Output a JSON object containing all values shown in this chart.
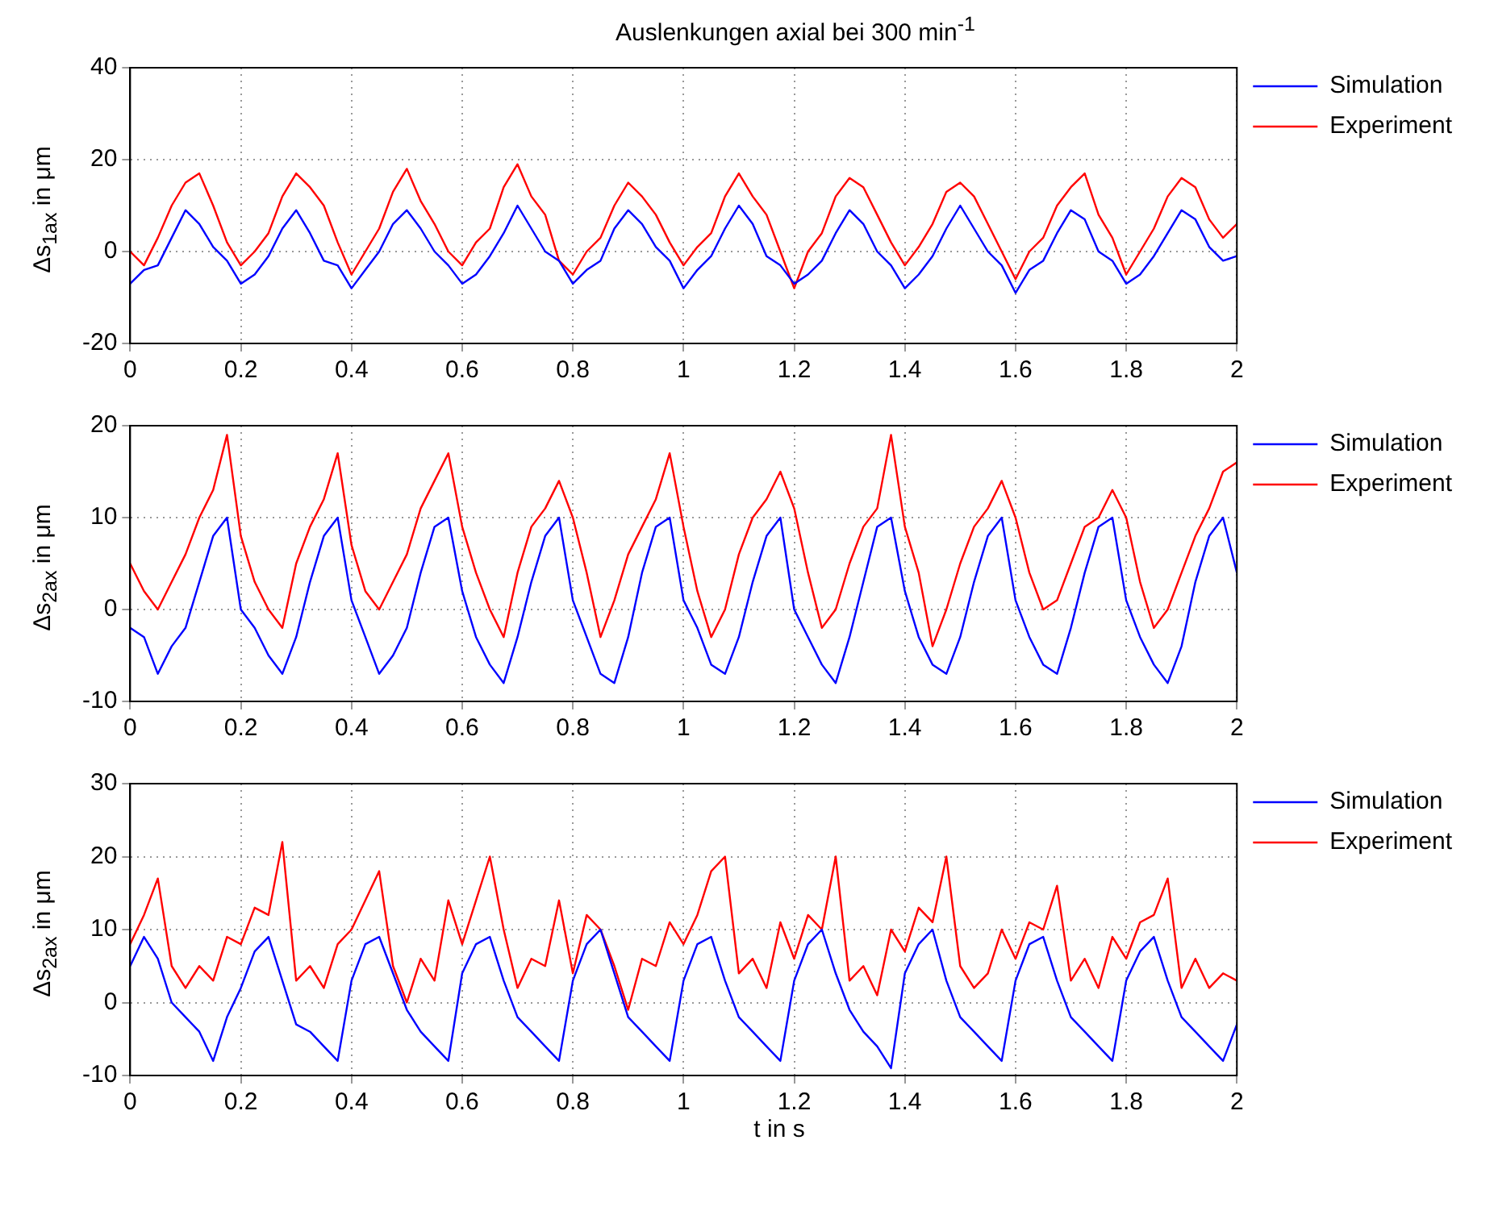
{
  "chart_data": [
    {
      "type": "line",
      "title": "Auslenkungen axial bei 300 min$^{-1}$",
      "ylabel": "Δs$_{1ax}$ in μm",
      "xlim": [
        0,
        2
      ],
      "ylim": [
        -20,
        40
      ],
      "xticks": [
        0,
        0.2,
        0.4,
        0.6,
        0.8,
        1,
        1.2,
        1.4,
        1.6,
        1.8,
        2
      ],
      "yticks": [
        -20,
        0,
        20,
        40
      ],
      "grid": true,
      "legend": "top right",
      "x": [
        0,
        0.025,
        0.05,
        0.075,
        0.1,
        0.125,
        0.15,
        0.175,
        0.2,
        0.225,
        0.25,
        0.275,
        0.3,
        0.325,
        0.35,
        0.375,
        0.4,
        0.425,
        0.45,
        0.475,
        0.5,
        0.525,
        0.55,
        0.575,
        0.6,
        0.625,
        0.65,
        0.675,
        0.7,
        0.725,
        0.75,
        0.775,
        0.8,
        0.825,
        0.85,
        0.875,
        0.9,
        0.925,
        0.95,
        0.975,
        1,
        1.025,
        1.05,
        1.075,
        1.1,
        1.125,
        1.15,
        1.175,
        1.2,
        1.225,
        1.25,
        1.275,
        1.3,
        1.325,
        1.35,
        1.375,
        1.4,
        1.425,
        1.45,
        1.475,
        1.5,
        1.525,
        1.55,
        1.575,
        1.6,
        1.625,
        1.65,
        1.675,
        1.7,
        1.725,
        1.75,
        1.775,
        1.8,
        1.825,
        1.85,
        1.875,
        1.9,
        1.925,
        1.95,
        1.975,
        2
      ],
      "series": [
        {
          "name": "Simulation",
          "color": "#0000ff",
          "values": [
            -7,
            -4,
            -3,
            3,
            9,
            6,
            1,
            -2,
            -7,
            -5,
            -1,
            5,
            9,
            4,
            -2,
            -3,
            -8,
            -4,
            0,
            6,
            9,
            5,
            0,
            -3,
            -7,
            -5,
            -1,
            4,
            10,
            5,
            0,
            -2,
            -7,
            -4,
            -2,
            5,
            9,
            6,
            1,
            -2,
            -8,
            -4,
            -1,
            5,
            10,
            6,
            -1,
            -3,
            -7,
            -5,
            -2,
            4,
            9,
            6,
            0,
            -3,
            -8,
            -5,
            -1,
            5,
            10,
            5,
            0,
            -3,
            -9,
            -4,
            -2,
            4,
            9,
            7,
            0,
            -2,
            -7,
            -5,
            -1,
            4,
            9,
            7,
            1,
            -2,
            -1
          ]
        },
        {
          "name": "Experiment",
          "color": "#ff0000",
          "values": [
            0,
            -3,
            3,
            10,
            15,
            17,
            10,
            2,
            -3,
            0,
            4,
            12,
            17,
            14,
            10,
            2,
            -5,
            0,
            5,
            13,
            18,
            11,
            6,
            0,
            -3,
            2,
            5,
            14,
            19,
            12,
            8,
            -2,
            -5,
            0,
            3,
            10,
            15,
            12,
            8,
            2,
            -3,
            1,
            4,
            12,
            17,
            12,
            8,
            0,
            -8,
            0,
            4,
            12,
            16,
            14,
            8,
            2,
            -3,
            1,
            6,
            13,
            15,
            12,
            6,
            0,
            -6,
            0,
            3,
            10,
            14,
            17,
            8,
            3,
            -5,
            0,
            5,
            12,
            16,
            14,
            7,
            3,
            6
          ]
        }
      ]
    },
    {
      "type": "line",
      "ylabel": "Δs$_{2ax}$ in μm",
      "xlim": [
        0,
        2
      ],
      "ylim": [
        -10,
        20
      ],
      "xticks": [
        0,
        0.2,
        0.4,
        0.6,
        0.8,
        1,
        1.2,
        1.4,
        1.6,
        1.8,
        2
      ],
      "yticks": [
        -10,
        0,
        10,
        20
      ],
      "grid": true,
      "legend": "top right",
      "x": [
        0,
        0.025,
        0.05,
        0.075,
        0.1,
        0.125,
        0.15,
        0.175,
        0.2,
        0.225,
        0.25,
        0.275,
        0.3,
        0.325,
        0.35,
        0.375,
        0.4,
        0.425,
        0.45,
        0.475,
        0.5,
        0.525,
        0.55,
        0.575,
        0.6,
        0.625,
        0.65,
        0.675,
        0.7,
        0.725,
        0.75,
        0.775,
        0.8,
        0.825,
        0.85,
        0.875,
        0.9,
        0.925,
        0.95,
        0.975,
        1,
        1.025,
        1.05,
        1.075,
        1.1,
        1.125,
        1.15,
        1.175,
        1.2,
        1.225,
        1.25,
        1.275,
        1.3,
        1.325,
        1.35,
        1.375,
        1.4,
        1.425,
        1.45,
        1.475,
        1.5,
        1.525,
        1.55,
        1.575,
        1.6,
        1.625,
        1.65,
        1.675,
        1.7,
        1.725,
        1.75,
        1.775,
        1.8,
        1.825,
        1.85,
        1.875,
        1.9,
        1.925,
        1.95,
        1.975,
        2
      ],
      "series": [
        {
          "name": "Simulation",
          "color": "#0000ff",
          "values": [
            -2,
            -3,
            -7,
            -4,
            -2,
            3,
            8,
            10,
            0,
            -2,
            -5,
            -7,
            -3,
            3,
            8,
            10,
            1,
            -3,
            -7,
            -5,
            -2,
            4,
            9,
            10,
            2,
            -3,
            -6,
            -8,
            -3,
            3,
            8,
            10,
            1,
            -3,
            -7,
            -8,
            -3,
            4,
            9,
            10,
            1,
            -2,
            -6,
            -7,
            -3,
            3,
            8,
            10,
            0,
            -3,
            -6,
            -8,
            -3,
            3,
            9,
            10,
            2,
            -3,
            -6,
            -7,
            -3,
            3,
            8,
            10,
            1,
            -3,
            -6,
            -7,
            -2,
            4,
            9,
            10,
            1,
            -3,
            -6,
            -8,
            -4,
            3,
            8,
            10,
            4
          ]
        },
        {
          "name": "Experiment",
          "color": "#ff0000",
          "values": [
            5,
            2,
            0,
            3,
            6,
            10,
            13,
            19,
            8,
            3,
            0,
            -2,
            5,
            9,
            12,
            17,
            7,
            2,
            0,
            3,
            6,
            11,
            14,
            17,
            9,
            4,
            0,
            -3,
            4,
            9,
            11,
            14,
            10,
            4,
            -3,
            1,
            6,
            9,
            12,
            17,
            9,
            2,
            -3,
            0,
            6,
            10,
            12,
            15,
            11,
            4,
            -2,
            0,
            5,
            9,
            11,
            19,
            9,
            4,
            -4,
            0,
            5,
            9,
            11,
            14,
            10,
            4,
            0,
            1,
            5,
            9,
            10,
            13,
            10,
            3,
            -2,
            0,
            4,
            8,
            11,
            15,
            16
          ]
        }
      ]
    },
    {
      "type": "line",
      "ylabel": "Δs$_{2ax}$ in μm",
      "xlabel": "t in s",
      "xlim": [
        0,
        2
      ],
      "ylim": [
        -10,
        30
      ],
      "xticks": [
        0,
        0.2,
        0.4,
        0.6,
        0.8,
        1,
        1.2,
        1.4,
        1.6,
        1.8,
        2
      ],
      "yticks": [
        -10,
        0,
        10,
        20,
        30
      ],
      "grid": true,
      "legend": "top right",
      "x": [
        0,
        0.025,
        0.05,
        0.075,
        0.1,
        0.125,
        0.15,
        0.175,
        0.2,
        0.225,
        0.25,
        0.275,
        0.3,
        0.325,
        0.35,
        0.375,
        0.4,
        0.425,
        0.45,
        0.475,
        0.5,
        0.525,
        0.55,
        0.575,
        0.6,
        0.625,
        0.65,
        0.675,
        0.7,
        0.725,
        0.75,
        0.775,
        0.8,
        0.825,
        0.85,
        0.875,
        0.9,
        0.925,
        0.95,
        0.975,
        1,
        1.025,
        1.05,
        1.075,
        1.1,
        1.125,
        1.15,
        1.175,
        1.2,
        1.225,
        1.25,
        1.275,
        1.3,
        1.325,
        1.35,
        1.375,
        1.4,
        1.425,
        1.45,
        1.475,
        1.5,
        1.525,
        1.55,
        1.575,
        1.6,
        1.625,
        1.65,
        1.675,
        1.7,
        1.725,
        1.75,
        1.775,
        1.8,
        1.825,
        1.85,
        1.875,
        1.9,
        1.925,
        1.95,
        1.975,
        2
      ],
      "series": [
        {
          "name": "Simulation",
          "color": "#0000ff",
          "values": [
            5,
            9,
            6,
            0,
            -2,
            -4,
            -8,
            -2,
            2,
            7,
            9,
            3,
            -3,
            -4,
            -6,
            -8,
            3,
            8,
            9,
            4,
            -1,
            -4,
            -6,
            -8,
            4,
            8,
            9,
            3,
            -2,
            -4,
            -6,
            -8,
            3,
            8,
            10,
            4,
            -2,
            -4,
            -6,
            -8,
            3,
            8,
            9,
            3,
            -2,
            -4,
            -6,
            -8,
            3,
            8,
            10,
            4,
            -1,
            -4,
            -6,
            -9,
            4,
            8,
            10,
            3,
            -2,
            -4,
            -6,
            -8,
            3,
            8,
            9,
            3,
            -2,
            -4,
            -6,
            -8,
            3,
            7,
            9,
            3,
            -2,
            -4,
            -6,
            -8,
            -3
          ]
        },
        {
          "name": "Experiment",
          "color": "#ff0000",
          "values": [
            8,
            12,
            17,
            5,
            2,
            5,
            3,
            9,
            8,
            13,
            12,
            22,
            3,
            5,
            2,
            8,
            10,
            14,
            18,
            5,
            0,
            6,
            3,
            14,
            8,
            14,
            20,
            10,
            2,
            6,
            5,
            14,
            4,
            12,
            10,
            5,
            -1,
            6,
            5,
            11,
            8,
            12,
            18,
            20,
            4,
            6,
            2,
            11,
            6,
            12,
            10,
            20,
            3,
            5,
            1,
            10,
            7,
            13,
            11,
            20,
            5,
            2,
            4,
            10,
            6,
            11,
            10,
            16,
            3,
            6,
            2,
            9,
            6,
            11,
            12,
            17,
            2,
            6,
            2,
            4,
            3
          ]
        }
      ]
    }
  ]
}
